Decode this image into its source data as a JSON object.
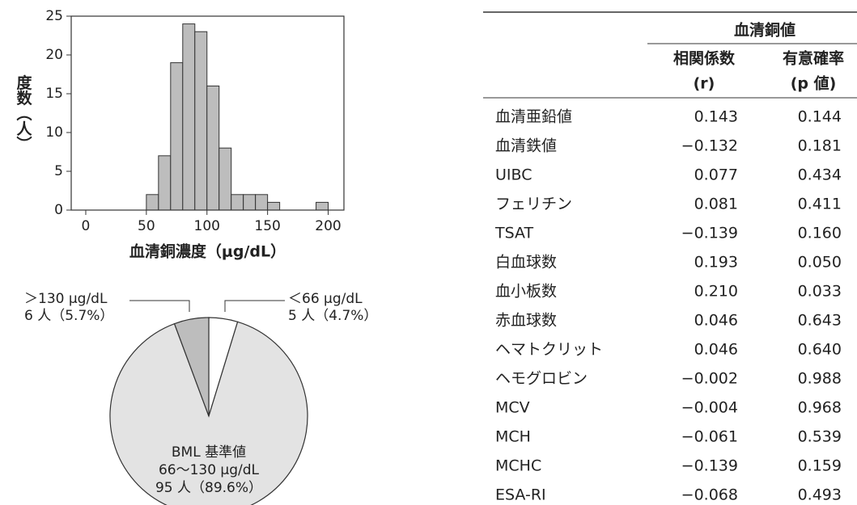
{
  "chart_data": [
    {
      "type": "histogram",
      "x_label": "血清銅濃度（μg/dL）",
      "y_label": "度数（人）",
      "bins": [
        50,
        60,
        70,
        80,
        90,
        100,
        110,
        120,
        130,
        140,
        150,
        160,
        170,
        180,
        190,
        200
      ],
      "values": [
        2,
        7,
        19,
        24,
        23,
        16,
        8,
        2,
        2,
        2,
        1,
        0,
        0,
        0,
        1
      ],
      "color": "#bdbdbd",
      "xlim": [
        -12,
        213
      ],
      "ylim": [
        0,
        25
      ],
      "xticks": [
        0,
        50,
        100,
        150,
        200
      ],
      "yticks": [
        0,
        5,
        10,
        15,
        20,
        25
      ]
    },
    {
      "type": "pie",
      "categories": [
        "＜66 μg/dL",
        "66〜130 μg/dL",
        "＞130 μg/dL"
      ],
      "values": [
        5,
        95,
        6
      ],
      "value_labels": [
        "5 人（4.7%）",
        "95 人（89.6%）",
        "6 人（5.7%）"
      ],
      "colors": [
        "#ffffff",
        "#e3e3e3",
        "#bdbdbd"
      ],
      "annotation": "BML 基準値"
    }
  ],
  "table": {
    "group_header": "血清銅値",
    "columns": [
      [
        "相関係数",
        "(r)"
      ],
      [
        "有意確率",
        "(p 値)"
      ]
    ],
    "rows": [
      [
        "血清亜鉛値",
        "0.143",
        "0.144"
      ],
      [
        "血清鉄値",
        "−0.132",
        "0.181"
      ],
      [
        "UIBC",
        "0.077",
        "0.434"
      ],
      [
        "フェリチン",
        "0.081",
        "0.411"
      ],
      [
        "TSAT",
        "−0.139",
        "0.160"
      ],
      [
        "白血球数",
        "0.193",
        "0.050"
      ],
      [
        "血小板数",
        "0.210",
        "0.033"
      ],
      [
        "赤血球数",
        "0.046",
        "0.643"
      ],
      [
        "ヘマトクリット",
        "0.046",
        "0.640"
      ],
      [
        "ヘモグロビン",
        "−0.002",
        "0.988"
      ],
      [
        "MCV",
        "−0.004",
        "0.968"
      ],
      [
        "MCH",
        "−0.061",
        "0.539"
      ],
      [
        "MCHC",
        "−0.139",
        "0.159"
      ],
      [
        "ESA-RI",
        "−0.068",
        "0.493"
      ]
    ]
  }
}
